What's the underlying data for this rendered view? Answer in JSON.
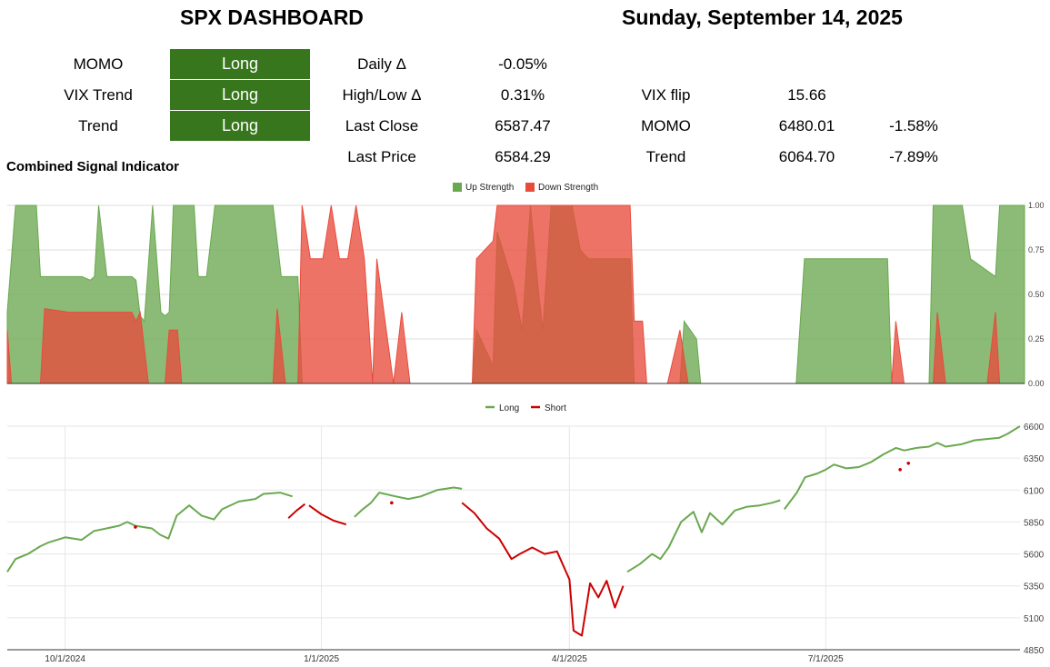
{
  "header": {
    "title": "SPX DASHBOARD",
    "date": "Sunday, September 14, 2025"
  },
  "signals": [
    {
      "name": "MOMO",
      "value": "Long"
    },
    {
      "name": "VIX Trend",
      "value": "Long"
    },
    {
      "name": "Trend",
      "value": "Long"
    }
  ],
  "stats": [
    {
      "label": "Daily Δ",
      "value": "-0.05%"
    },
    {
      "label": "High/Low Δ",
      "value": "0.31%"
    },
    {
      "label": "Last Close",
      "value": "6587.47"
    },
    {
      "label": "Last Price",
      "value": "6584.29"
    }
  ],
  "levels": [
    {
      "label": "VIX flip",
      "value": "15.66",
      "pct": ""
    },
    {
      "label": "MOMO",
      "value": "6480.01",
      "pct": "-1.58%"
    },
    {
      "label": "Trend",
      "value": "6064.70",
      "pct": "-7.89%"
    }
  ],
  "section_title": "Combined Signal Indicator",
  "colors": {
    "signal_bg": "#38761d",
    "up": "#6aa84f",
    "down": "#e84b3c",
    "long": "#6aa84f",
    "short": "#cc0000"
  },
  "chart_data": [
    {
      "type": "area",
      "title": "",
      "legend": [
        "Up Strength",
        "Down Strength"
      ],
      "legend_position": "top-center",
      "ylim": [
        0,
        1
      ],
      "yticks": [
        "0.00",
        "0.25",
        "0.50",
        "0.75",
        "1.00"
      ],
      "x_range": [
        0,
        245
      ],
      "series": [
        {
          "name": "Up Strength",
          "points": [
            [
              0,
              0.4
            ],
            [
              2,
              1
            ],
            [
              7,
              1
            ],
            [
              8,
              0.6
            ],
            [
              18,
              0.6
            ],
            [
              20,
              0.58
            ],
            [
              21,
              0.6
            ],
            [
              22,
              1
            ],
            [
              24,
              0.6
            ],
            [
              30,
              0.6
            ],
            [
              31,
              0.58
            ],
            [
              32,
              0.38
            ],
            [
              33,
              0.35
            ],
            [
              35,
              1
            ],
            [
              37,
              0.4
            ],
            [
              38,
              0.38
            ],
            [
              39,
              0.4
            ],
            [
              40,
              1
            ],
            [
              45,
              1
            ],
            [
              46,
              0.6
            ],
            [
              48,
              0.6
            ],
            [
              50,
              1
            ],
            [
              64,
              1
            ],
            [
              66,
              0.6
            ],
            [
              70,
              0.6
            ],
            [
              71,
              0
            ],
            [
              112,
              0
            ],
            [
              113,
              0.3
            ],
            [
              117,
              0.1
            ],
            [
              118,
              0.85
            ],
            [
              122,
              0.55
            ],
            [
              124,
              0.3
            ],
            [
              126,
              1
            ],
            [
              128,
              0.5
            ],
            [
              129,
              0.3
            ],
            [
              131,
              1
            ],
            [
              136,
              1
            ],
            [
              138,
              0.75
            ],
            [
              140,
              0.7
            ],
            [
              150,
              0.7
            ],
            [
              151,
              0
            ],
            [
              162,
              0
            ],
            [
              163,
              0.35
            ],
            [
              166,
              0.25
            ],
            [
              167,
              0
            ],
            [
              190,
              0
            ],
            [
              192,
              0.7
            ],
            [
              212,
              0.7
            ],
            [
              213,
              0
            ],
            [
              222,
              0
            ],
            [
              223,
              1
            ],
            [
              230,
              1
            ],
            [
              232,
              0.7
            ],
            [
              238,
              0.6
            ],
            [
              239,
              1
            ],
            [
              245,
              1
            ]
          ]
        },
        {
          "name": "Down Strength",
          "points": [
            [
              0,
              0.3
            ],
            [
              1,
              0
            ],
            [
              8,
              0
            ],
            [
              9,
              0.42
            ],
            [
              15,
              0.4
            ],
            [
              30,
              0.4
            ],
            [
              31,
              0.35
            ],
            [
              32,
              0.4
            ],
            [
              34,
              0
            ],
            [
              38,
              0
            ],
            [
              39,
              0.3
            ],
            [
              41,
              0.3
            ],
            [
              42,
              0
            ],
            [
              64,
              0
            ],
            [
              65,
              0.42
            ],
            [
              67,
              0
            ],
            [
              70,
              0
            ],
            [
              71,
              1
            ],
            [
              73,
              0.7
            ],
            [
              76,
              0.7
            ],
            [
              78,
              1
            ],
            [
              80,
              0.7
            ],
            [
              82,
              0.7
            ],
            [
              84,
              1
            ],
            [
              86,
              0.7
            ],
            [
              88,
              0
            ],
            [
              89,
              0.7
            ],
            [
              91,
              0.35
            ],
            [
              93,
              0
            ],
            [
              95,
              0.4
            ],
            [
              97,
              0
            ],
            [
              112,
              0
            ],
            [
              113,
              0.7
            ],
            [
              117,
              0.8
            ],
            [
              118,
              1
            ],
            [
              150,
              1
            ],
            [
              151,
              0.35
            ],
            [
              153,
              0.35
            ],
            [
              154,
              0
            ],
            [
              159,
              0
            ],
            [
              162,
              0.3
            ],
            [
              164,
              0
            ],
            [
              213,
              0
            ],
            [
              214,
              0.35
            ],
            [
              216,
              0
            ],
            [
              223,
              0
            ],
            [
              224,
              0.4
            ],
            [
              226,
              0
            ],
            [
              236,
              0
            ],
            [
              238,
              0.4
            ],
            [
              239,
              0
            ]
          ]
        }
      ]
    },
    {
      "type": "line",
      "title": "",
      "legend": [
        "Long",
        "Short"
      ],
      "legend_position": "top-center",
      "ylim": [
        4850,
        6600
      ],
      "yticks": [
        "6600",
        "6350",
        "6100",
        "5850",
        "5600",
        "5350",
        "5100",
        "4850"
      ],
      "xticks": [
        {
          "label": "10/1/2024",
          "x": 14
        },
        {
          "label": "1/1/2025",
          "x": 76
        },
        {
          "label": "4/1/2025",
          "x": 136
        },
        {
          "label": "7/1/2025",
          "x": 198
        }
      ],
      "x_range": [
        0,
        245
      ],
      "series": [
        {
          "name": "Long",
          "segments": [
            [
              [
                0,
                5460
              ],
              [
                2,
                5560
              ],
              [
                5,
                5600
              ],
              [
                8,
                5660
              ],
              [
                10,
                5690
              ],
              [
                14,
                5730
              ],
              [
                18,
                5710
              ],
              [
                21,
                5780
              ],
              [
                24,
                5800
              ],
              [
                27,
                5820
              ],
              [
                29,
                5850
              ],
              [
                31,
                5820
              ],
              [
                35,
                5800
              ],
              [
                37,
                5750
              ],
              [
                39,
                5720
              ],
              [
                41,
                5900
              ],
              [
                44,
                5980
              ],
              [
                47,
                5900
              ],
              [
                50,
                5870
              ],
              [
                52,
                5950
              ],
              [
                56,
                6010
              ],
              [
                60,
                6030
              ],
              [
                62,
                6070
              ],
              [
                66,
                6080
              ],
              [
                69,
                6050
              ]
            ],
            [
              [
                84,
                5890
              ],
              [
                86,
                5950
              ],
              [
                88,
                6000
              ],
              [
                90,
                6080
              ],
              [
                94,
                6050
              ],
              [
                97,
                6030
              ],
              [
                100,
                6050
              ],
              [
                104,
                6100
              ],
              [
                108,
                6120
              ],
              [
                110,
                6110
              ]
            ],
            [
              [
                150,
                5460
              ],
              [
                153,
                5520
              ],
              [
                156,
                5600
              ],
              [
                158,
                5560
              ],
              [
                160,
                5650
              ],
              [
                163,
                5850
              ],
              [
                166,
                5930
              ],
              [
                168,
                5770
              ],
              [
                170,
                5920
              ],
              [
                173,
                5830
              ],
              [
                176,
                5940
              ],
              [
                179,
                5970
              ],
              [
                182,
                5980
              ],
              [
                185,
                6000
              ],
              [
                187,
                6020
              ]
            ],
            [
              [
                188,
                5950
              ],
              [
                191,
                6080
              ],
              [
                193,
                6200
              ],
              [
                196,
                6230
              ],
              [
                198,
                6260
              ],
              [
                200,
                6300
              ],
              [
                203,
                6270
              ],
              [
                206,
                6280
              ],
              [
                209,
                6320
              ],
              [
                212,
                6380
              ],
              [
                215,
                6430
              ],
              [
                217,
                6410
              ],
              [
                220,
                6430
              ],
              [
                223,
                6440
              ],
              [
                225,
                6470
              ],
              [
                227,
                6440
              ],
              [
                231,
                6460
              ],
              [
                234,
                6490
              ],
              [
                237,
                6500
              ],
              [
                240,
                6510
              ],
              [
                242,
                6540
              ],
              [
                245,
                6600
              ]
            ]
          ]
        },
        {
          "name": "Short",
          "segments": [
            [
              [
                68,
                5880
              ],
              [
                70,
                5940
              ],
              [
                72,
                5990
              ]
            ],
            [
              [
                73,
                5980
              ],
              [
                76,
                5910
              ],
              [
                79,
                5860
              ],
              [
                82,
                5830
              ]
            ],
            [
              [
                110,
                6000
              ],
              [
                113,
                5920
              ],
              [
                116,
                5800
              ],
              [
                119,
                5720
              ],
              [
                122,
                5560
              ],
              [
                124,
                5600
              ],
              [
                127,
                5650
              ],
              [
                130,
                5600
              ],
              [
                133,
                5620
              ],
              [
                136,
                5400
              ],
              [
                137,
                5000
              ],
              [
                139,
                4960
              ],
              [
                141,
                5370
              ],
              [
                143,
                5260
              ],
              [
                145,
                5390
              ],
              [
                147,
                5180
              ],
              [
                149,
                5350
              ]
            ]
          ],
          "points": [
            [
              31,
              5810
            ],
            [
              93,
              6000
            ],
            [
              216,
              6260
            ],
            [
              218,
              6310
            ]
          ]
        }
      ]
    }
  ]
}
